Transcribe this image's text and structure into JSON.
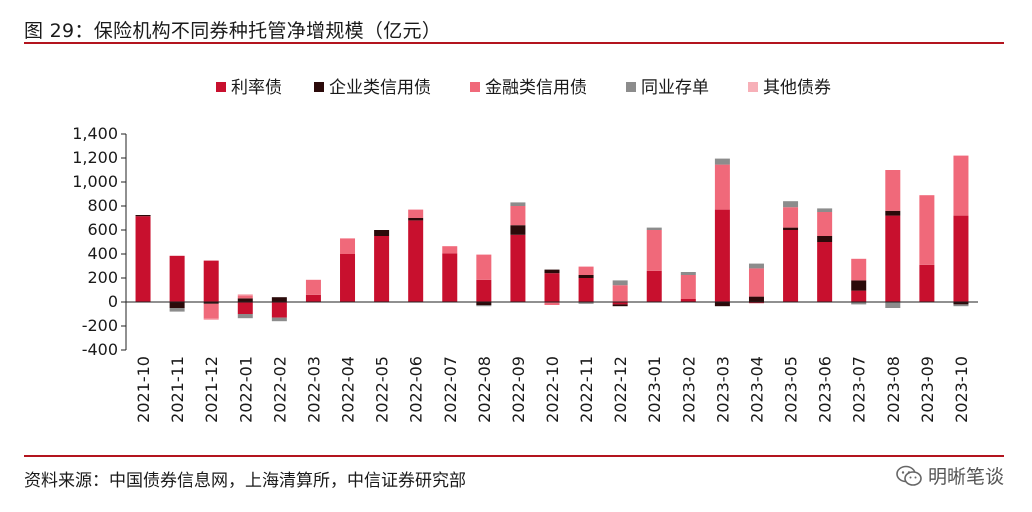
{
  "figure": {
    "title": "图 29：保险机构不同券种托管净增规模（亿元）",
    "source": "资料来源：中国债券信息网，上海清算所，中信证券研究部",
    "watermark": "明晰笔谈"
  },
  "chart_data": {
    "type": "bar",
    "stacked": true,
    "categories": [
      "2021-10",
      "2021-11",
      "2021-12",
      "2022-01",
      "2022-02",
      "2022-03",
      "2022-04",
      "2022-05",
      "2022-06",
      "2022-07",
      "2022-08",
      "2022-09",
      "2022-10",
      "2022-11",
      "2022-12",
      "2023-01",
      "2023-02",
      "2023-03",
      "2023-04",
      "2023-05",
      "2023-06",
      "2023-07",
      "2023-08",
      "2023-09",
      "2023-10"
    ],
    "ylim": [
      -400,
      1400
    ],
    "yticks": [
      -400,
      -200,
      0,
      200,
      400,
      600,
      800,
      1000,
      1200,
      1400
    ],
    "ytick_labels": [
      "-400",
      "-200",
      "0",
      "200",
      "400",
      "600",
      "800",
      "1,000",
      "1,200",
      "1,400"
    ],
    "legend_position": "top",
    "series": [
      {
        "name": "利率债",
        "color": "#c8102e",
        "values": [
          715,
          385,
          345,
          -100,
          -130,
          60,
          400,
          550,
          680,
          405,
          185,
          560,
          240,
          200,
          -20,
          260,
          25,
          770,
          -10,
          600,
          500,
          95,
          720,
          310,
          720
        ]
      },
      {
        "name": "企业类信用债",
        "color": "#2b0a0a",
        "values": [
          10,
          -50,
          -15,
          30,
          40,
          0,
          0,
          50,
          20,
          0,
          -25,
          80,
          30,
          25,
          -15,
          0,
          0,
          -35,
          45,
          20,
          50,
          85,
          40,
          0,
          -20
        ]
      },
      {
        "name": "金融类信用债",
        "color": "#f0697a",
        "values": [
          0,
          0,
          -125,
          25,
          0,
          125,
          130,
          0,
          70,
          60,
          210,
          160,
          -25,
          70,
          140,
          340,
          200,
          375,
          235,
          170,
          200,
          180,
          340,
          580,
          500
        ]
      },
      {
        "name": "同业存单",
        "color": "#8c8c8c",
        "values": [
          0,
          -30,
          0,
          -35,
          -30,
          0,
          0,
          0,
          0,
          0,
          -10,
          30,
          0,
          -15,
          40,
          20,
          25,
          50,
          40,
          50,
          30,
          -20,
          -50,
          0,
          -15
        ]
      },
      {
        "name": "其他债券",
        "color": "#f7b0b8",
        "values": [
          0,
          0,
          -10,
          10,
          0,
          0,
          0,
          0,
          0,
          0,
          0,
          0,
          0,
          0,
          0,
          0,
          0,
          0,
          0,
          0,
          0,
          0,
          0,
          0,
          0
        ]
      }
    ]
  }
}
